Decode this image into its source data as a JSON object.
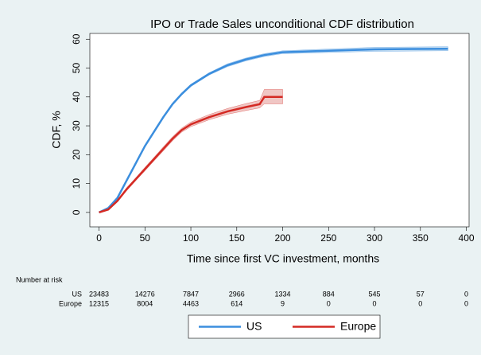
{
  "chart_data": {
    "type": "line",
    "title": "IPO or Trade Sales unconditional CDF distribution",
    "xlabel": "Time since first VC investment, months",
    "ylabel": "CDF, %",
    "xlim": [
      -10,
      403
    ],
    "ylim": [
      -5,
      62
    ],
    "xticks": [
      0,
      50,
      100,
      150,
      200,
      250,
      300,
      350,
      400
    ],
    "yticks": [
      0,
      10,
      20,
      30,
      40,
      50,
      60
    ],
    "series": [
      {
        "name": "US",
        "color": "#3b8ede",
        "band_color": "#c9dff2",
        "x": [
          0,
          10,
          20,
          30,
          40,
          50,
          60,
          70,
          80,
          90,
          100,
          120,
          140,
          160,
          180,
          200,
          250,
          300,
          380
        ],
        "values": [
          0,
          1.5,
          5,
          11,
          17,
          23,
          28,
          33,
          37.5,
          41,
          44,
          48,
          51,
          53,
          54.5,
          55.5,
          56,
          56.5,
          56.7
        ],
        "lower": [
          0,
          1.3,
          4.7,
          10.6,
          16.6,
          22.6,
          27.6,
          32.6,
          37.1,
          40.6,
          43.6,
          47.6,
          50.5,
          52.5,
          54,
          55,
          55.4,
          55.8,
          56
        ],
        "upper": [
          0,
          1.7,
          5.3,
          11.4,
          17.4,
          23.4,
          28.4,
          33.4,
          37.9,
          41.4,
          44.4,
          48.4,
          51.5,
          53.5,
          55,
          56,
          56.6,
          57.2,
          57.4
        ]
      },
      {
        "name": "Europe",
        "color": "#d42a24",
        "band_color": "#f0c6c4",
        "x": [
          0,
          10,
          20,
          30,
          40,
          50,
          60,
          70,
          80,
          90,
          100,
          120,
          140,
          160,
          175,
          180,
          200
        ],
        "values": [
          0,
          1,
          4,
          8,
          11.5,
          15,
          18.5,
          22,
          25.5,
          28.5,
          30.5,
          33,
          35,
          36.5,
          37.5,
          40,
          40
        ],
        "lower": [
          0,
          0.8,
          3.6,
          7.5,
          11,
          14.4,
          17.9,
          21.3,
          24.8,
          27.8,
          29.7,
          32.1,
          34,
          35.3,
          36.2,
          37.6,
          37.6
        ],
        "upper": [
          0,
          1.2,
          4.4,
          8.5,
          12,
          15.6,
          19.1,
          22.7,
          26.2,
          29.2,
          31.3,
          33.9,
          36,
          37.7,
          38.8,
          42.6,
          42.6
        ]
      }
    ],
    "risk_table": {
      "title": "Number at risk",
      "rows": [
        {
          "name": "US",
          "values": [
            "23483",
            "14276",
            "7847",
            "2966",
            "1334",
            "884",
            "545",
            "57",
            "0"
          ]
        },
        {
          "name": "Europe",
          "values": [
            "12315",
            "8004",
            "4463",
            "614",
            "9",
            "0",
            "0",
            "0",
            "0"
          ]
        }
      ]
    }
  }
}
